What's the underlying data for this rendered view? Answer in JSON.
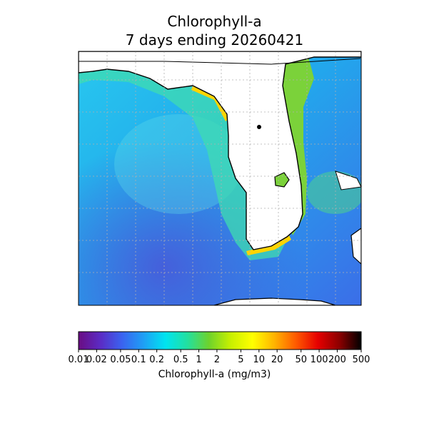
{
  "title_line1": "Chlorophyll-a",
  "title_line2": "7 days ending 20260421",
  "colorbar": {
    "label": "Chlorophyll-a (mg/m3)",
    "scale": "log",
    "range": [
      0.01,
      500
    ],
    "ticks": [
      "0.01",
      "0.02",
      "0.05",
      "0.1",
      "0.2",
      "0.5",
      "1",
      "2",
      "5",
      "10",
      "20",
      "50",
      "100",
      "200",
      "500"
    ],
    "tick_values": [
      0.01,
      0.02,
      0.05,
      0.1,
      0.2,
      0.5,
      1,
      2,
      5,
      10,
      20,
      50,
      100,
      200,
      500
    ],
    "colormap": [
      "#6a0d83",
      "#5b2bc4",
      "#3a63f0",
      "#1ea0f5",
      "#00e4f0",
      "#22e0a0",
      "#6ed22c",
      "#c8f000",
      "#ffff00",
      "#ffb400",
      "#ff5a00",
      "#e60000",
      "#8c0000",
      "#000000"
    ]
  },
  "colors": {
    "land": "#ffffff",
    "coastline": "#000000",
    "gulf_water": "#1ab4ea",
    "deep_water": "#3b6ee8",
    "coastal_bloom": "#7bd23a",
    "high_chl": "#ffd400"
  }
}
